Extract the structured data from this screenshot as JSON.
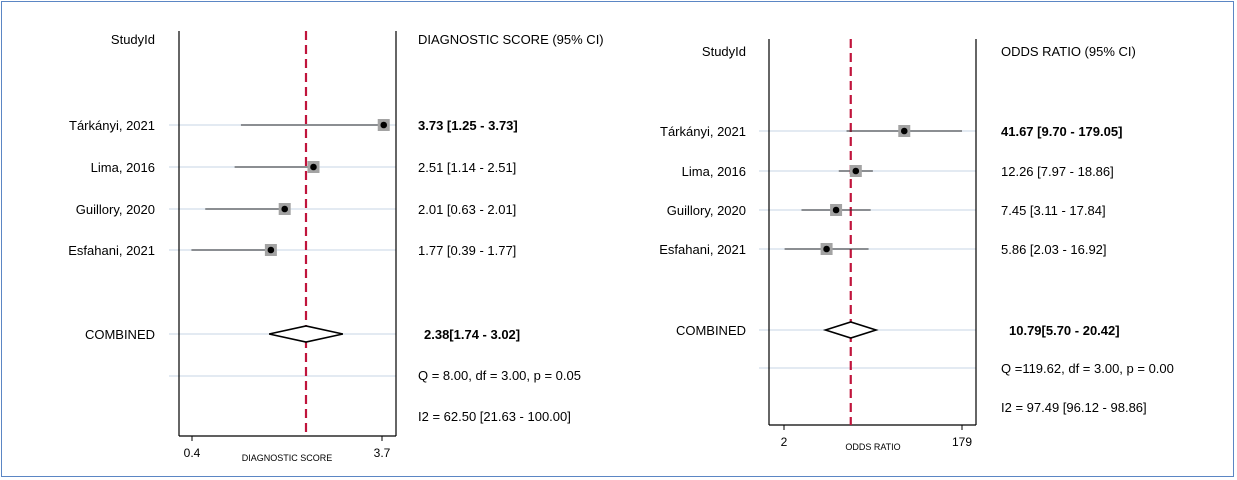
{
  "chart_data": [
    {
      "type": "forest",
      "study_header": "StudyId",
      "value_header": "DIAGNOSTIC SCORE (95% CI)",
      "xlabel": "DIAGNOSTIC SCORE",
      "xticks": [
        "0.4",
        "3.7"
      ],
      "xlim": [
        0.4,
        3.7
      ],
      "reference_line": 2.38,
      "studies": [
        {
          "name": "Tárkányi, 2021",
          "estimate": 3.73,
          "lower": 1.25,
          "upper": 3.73,
          "label": "3.73 [1.25 - 3.73]",
          "bold": true
        },
        {
          "name": "Lima, 2016",
          "estimate": 2.51,
          "lower": 1.14,
          "upper": 2.51,
          "label": "2.51 [1.14 - 2.51]",
          "bold": false
        },
        {
          "name": "Guillory, 2020",
          "estimate": 2.01,
          "lower": 0.63,
          "upper": 2.01,
          "label": "2.01 [0.63 - 2.01]",
          "bold": false
        },
        {
          "name": "Esfahani, 2021",
          "estimate": 1.77,
          "lower": 0.39,
          "upper": 1.77,
          "label": "1.77 [0.39 - 1.77]",
          "bold": false
        }
      ],
      "combined": {
        "name": "COMBINED",
        "estimate": 2.38,
        "lower": 1.74,
        "upper": 3.02,
        "label": "2.38[1.74 - 3.02]"
      },
      "heterogeneity": "Q =  8.00, df = 3.00, p =  0.05",
      "i2": "I2 = 62.50 [21.63 - 100.00]"
    },
    {
      "type": "forest",
      "study_header": "StudyId",
      "value_header": "ODDS RATIO (95% CI)",
      "xlabel": "ODDS RATIO",
      "xticks": [
        "2",
        "179"
      ],
      "xlim": [
        2,
        179
      ],
      "log_scale": true,
      "reference_line": 10.79,
      "studies": [
        {
          "name": "Tárkányi, 2021",
          "estimate": 41.67,
          "lower": 9.7,
          "upper": 179.05,
          "label": "41.67 [9.70 - 179.05]",
          "bold": true
        },
        {
          "name": "Lima, 2016",
          "estimate": 12.26,
          "lower": 7.97,
          "upper": 18.86,
          "label": "12.26 [7.97 - 18.86]",
          "bold": false
        },
        {
          "name": "Guillory, 2020",
          "estimate": 7.45,
          "lower": 3.11,
          "upper": 17.84,
          "label": "7.45 [3.11 - 17.84]",
          "bold": false
        },
        {
          "name": "Esfahani, 2021",
          "estimate": 5.86,
          "lower": 2.03,
          "upper": 16.92,
          "label": "5.86 [2.03 - 16.92]",
          "bold": false
        }
      ],
      "combined": {
        "name": "COMBINED",
        "estimate": 10.79,
        "lower": 5.7,
        "upper": 20.42,
        "label": "10.79[5.70 - 20.42]"
      },
      "heterogeneity": "Q =119.62, df = 3.00, p =  0.00",
      "i2": "I2 = 97.49 [96.12 - 98.86]"
    }
  ]
}
